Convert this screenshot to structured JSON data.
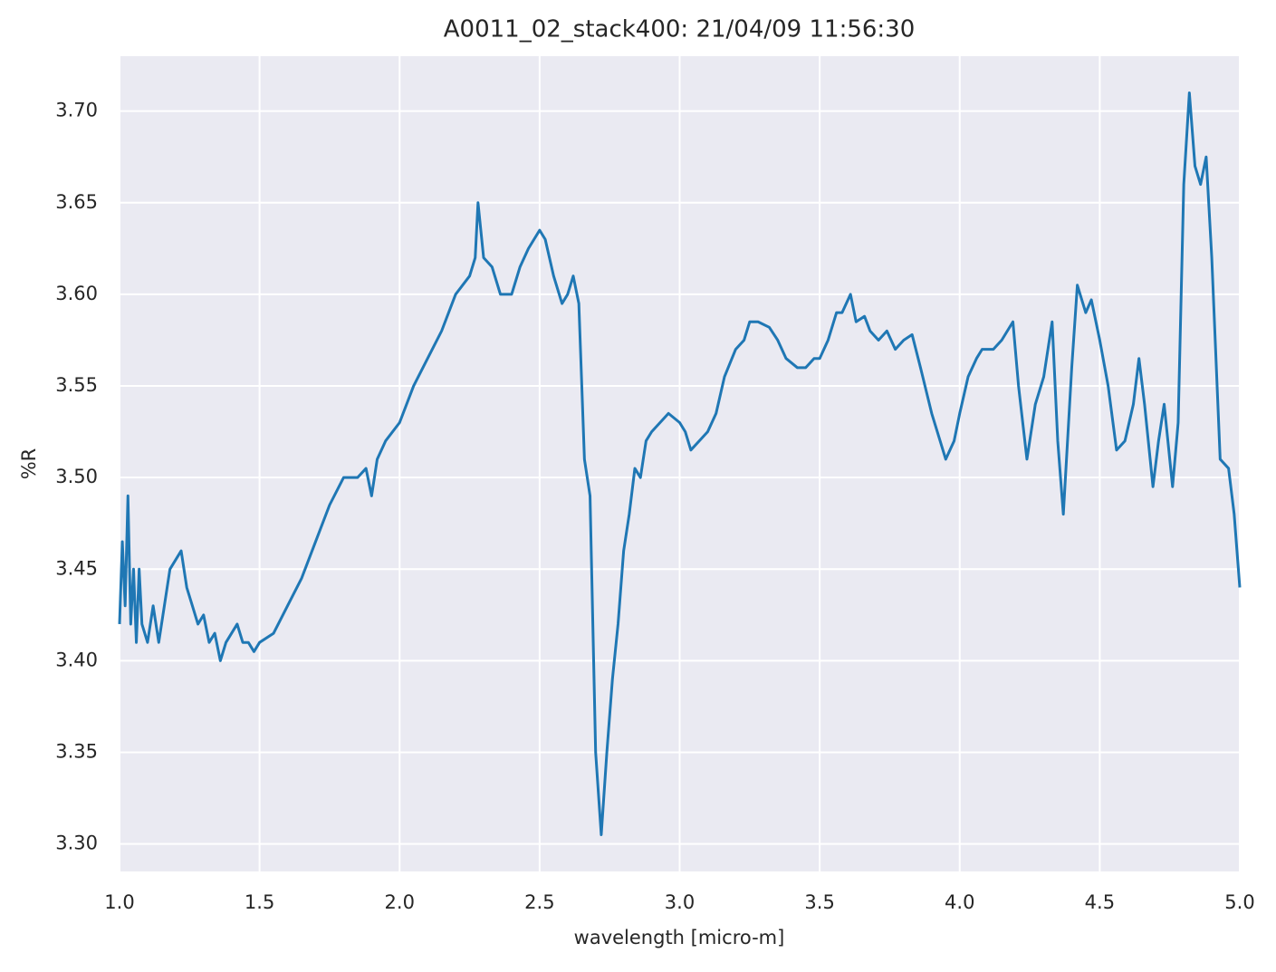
{
  "chart_data": {
    "type": "line",
    "title": "A0011_02_stack400:  21/04/09 11:56:30",
    "xlabel": "wavelength [micro-m]",
    "ylabel": "%R",
    "xlim": [
      1.0,
      5.0
    ],
    "ylim": [
      3.285,
      3.73
    ],
    "xticks": [
      {
        "value": 1.0,
        "label": "1.0"
      },
      {
        "value": 1.5,
        "label": "1.5"
      },
      {
        "value": 2.0,
        "label": "2.0"
      },
      {
        "value": 2.5,
        "label": "2.5"
      },
      {
        "value": 3.0,
        "label": "3.0"
      },
      {
        "value": 3.5,
        "label": "3.5"
      },
      {
        "value": 4.0,
        "label": "4.0"
      },
      {
        "value": 4.5,
        "label": "4.5"
      },
      {
        "value": 5.0,
        "label": "5.0"
      }
    ],
    "yticks": [
      {
        "value": 3.3,
        "label": "3.30"
      },
      {
        "value": 3.35,
        "label": "3.35"
      },
      {
        "value": 3.4,
        "label": "3.40"
      },
      {
        "value": 3.45,
        "label": "3.45"
      },
      {
        "value": 3.5,
        "label": "3.50"
      },
      {
        "value": 3.55,
        "label": "3.55"
      },
      {
        "value": 3.6,
        "label": "3.60"
      },
      {
        "value": 3.65,
        "label": "3.65"
      },
      {
        "value": 3.7,
        "label": "3.70"
      }
    ],
    "grid": true,
    "color": "#1f77b4",
    "x": [
      1.0,
      1.01,
      1.02,
      1.03,
      1.04,
      1.05,
      1.06,
      1.07,
      1.08,
      1.1,
      1.12,
      1.14,
      1.16,
      1.18,
      1.2,
      1.22,
      1.24,
      1.26,
      1.28,
      1.3,
      1.32,
      1.34,
      1.36,
      1.38,
      1.4,
      1.42,
      1.44,
      1.46,
      1.48,
      1.5,
      1.55,
      1.6,
      1.65,
      1.7,
      1.75,
      1.8,
      1.85,
      1.88,
      1.9,
      1.92,
      1.95,
      2.0,
      2.05,
      2.1,
      2.15,
      2.2,
      2.25,
      2.27,
      2.28,
      2.3,
      2.33,
      2.36,
      2.4,
      2.43,
      2.46,
      2.5,
      2.52,
      2.55,
      2.58,
      2.6,
      2.62,
      2.64,
      2.66,
      2.68,
      2.7,
      2.72,
      2.74,
      2.76,
      2.78,
      2.8,
      2.82,
      2.84,
      2.86,
      2.88,
      2.9,
      2.93,
      2.96,
      3.0,
      3.02,
      3.04,
      3.07,
      3.1,
      3.13,
      3.16,
      3.2,
      3.23,
      3.25,
      3.28,
      3.32,
      3.35,
      3.38,
      3.42,
      3.45,
      3.48,
      3.5,
      3.53,
      3.56,
      3.58,
      3.61,
      3.63,
      3.66,
      3.68,
      3.71,
      3.74,
      3.77,
      3.8,
      3.83,
      3.86,
      3.9,
      3.93,
      3.95,
      3.98,
      4.0,
      4.03,
      4.06,
      4.08,
      4.12,
      4.15,
      4.19,
      4.21,
      4.24,
      4.27,
      4.3,
      4.33,
      4.35,
      4.37,
      4.4,
      4.42,
      4.45,
      4.47,
      4.5,
      4.53,
      4.56,
      4.59,
      4.62,
      4.64,
      4.66,
      4.69,
      4.71,
      4.73,
      4.76,
      4.78,
      4.8,
      4.82,
      4.84,
      4.86,
      4.88,
      4.9,
      4.93,
      4.96,
      4.98,
      5.0
    ],
    "values": [
      3.42,
      3.465,
      3.43,
      3.49,
      3.42,
      3.45,
      3.41,
      3.45,
      3.42,
      3.41,
      3.43,
      3.41,
      3.43,
      3.45,
      3.455,
      3.46,
      3.44,
      3.43,
      3.42,
      3.425,
      3.41,
      3.415,
      3.4,
      3.41,
      3.415,
      3.42,
      3.41,
      3.41,
      3.405,
      3.41,
      3.415,
      3.43,
      3.445,
      3.465,
      3.485,
      3.5,
      3.5,
      3.505,
      3.49,
      3.51,
      3.52,
      3.53,
      3.55,
      3.565,
      3.58,
      3.6,
      3.61,
      3.62,
      3.65,
      3.62,
      3.615,
      3.6,
      3.6,
      3.615,
      3.625,
      3.635,
      3.63,
      3.61,
      3.595,
      3.6,
      3.61,
      3.595,
      3.51,
      3.49,
      3.35,
      3.305,
      3.35,
      3.39,
      3.42,
      3.46,
      3.48,
      3.505,
      3.5,
      3.52,
      3.525,
      3.53,
      3.535,
      3.53,
      3.525,
      3.515,
      3.52,
      3.525,
      3.535,
      3.555,
      3.57,
      3.575,
      3.585,
      3.585,
      3.582,
      3.575,
      3.565,
      3.56,
      3.56,
      3.565,
      3.565,
      3.575,
      3.59,
      3.59,
      3.6,
      3.585,
      3.588,
      3.58,
      3.575,
      3.58,
      3.57,
      3.575,
      3.578,
      3.56,
      3.535,
      3.52,
      3.51,
      3.52,
      3.535,
      3.555,
      3.565,
      3.57,
      3.57,
      3.575,
      3.585,
      3.55,
      3.51,
      3.54,
      3.555,
      3.585,
      3.52,
      3.48,
      3.56,
      3.605,
      3.59,
      3.597,
      3.575,
      3.55,
      3.515,
      3.52,
      3.54,
      3.565,
      3.54,
      3.495,
      3.52,
      3.54,
      3.495,
      3.53,
      3.66,
      3.71,
      3.67,
      3.66,
      3.675,
      3.62,
      3.51,
      3.505,
      3.48,
      3.44
    ]
  }
}
